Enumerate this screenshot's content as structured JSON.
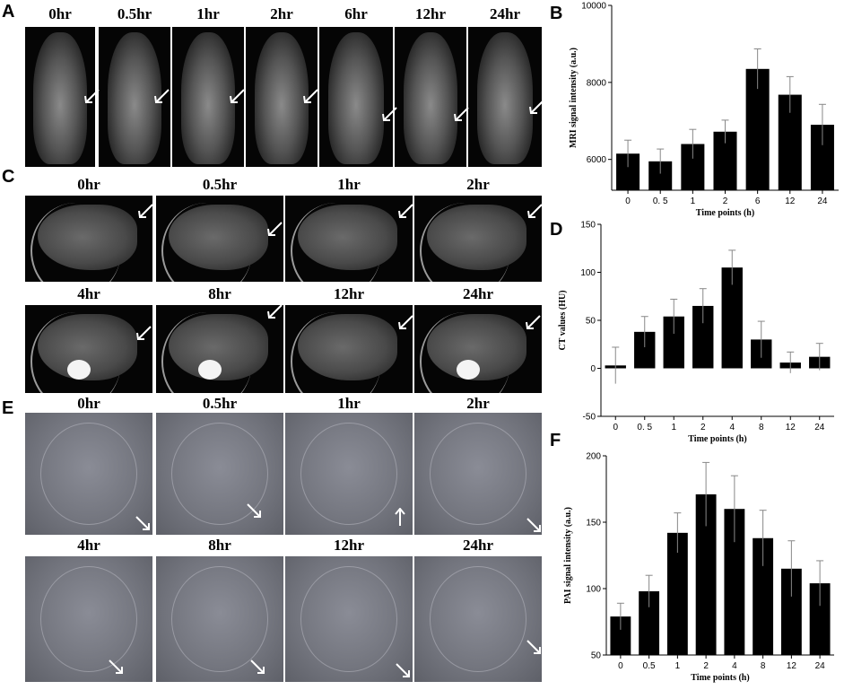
{
  "panels": {
    "A": {
      "letter": "A",
      "labels": [
        "0hr",
        "0.5hr",
        "1hr",
        "2hr",
        "6hr",
        "12hr",
        "24hr"
      ]
    },
    "B": {
      "letter": "B"
    },
    "C": {
      "letter": "C",
      "labels": [
        "0hr",
        "0.5hr",
        "1hr",
        "2hr",
        "4hr",
        "8hr",
        "12hr",
        "24hr"
      ]
    },
    "D": {
      "letter": "D"
    },
    "E": {
      "letter": "E",
      "labels": [
        "0hr",
        "0.5hr",
        "1hr",
        "2hr",
        "4hr",
        "8hr",
        "12hr",
        "24hr"
      ]
    },
    "F": {
      "letter": "F"
    }
  },
  "chart_data": [
    {
      "panel": "B",
      "type": "bar",
      "categories": [
        "0",
        "0. 5",
        "1",
        "2",
        "6",
        "12",
        "24"
      ],
      "values": [
        6150,
        5950,
        6400,
        6720,
        8350,
        7680,
        6900
      ],
      "errors": [
        350,
        320,
        380,
        300,
        520,
        470,
        530
      ],
      "xlabel": "Time points (h)",
      "ylabel": "MRI signal intensity (a.u.)",
      "ylim": [
        5200,
        10000
      ],
      "yticks": [
        6000,
        8000,
        10000
      ],
      "bar_color": "#000000"
    },
    {
      "panel": "D",
      "type": "bar",
      "categories": [
        "0",
        "0. 5",
        "1",
        "2",
        "4",
        "8",
        "12",
        "24"
      ],
      "values": [
        3,
        38,
        54,
        65,
        105,
        30,
        6,
        12
      ],
      "errors": [
        19,
        16,
        18,
        18,
        18,
        19,
        11,
        14
      ],
      "xlabel": "Time points (h)",
      "ylabel": "CT values (HU)",
      "ylim": [
        -50,
        150
      ],
      "yticks": [
        -50,
        0,
        50,
        100,
        150
      ],
      "bar_color": "#000000"
    },
    {
      "panel": "F",
      "type": "bar",
      "categories": [
        "0",
        "0.5",
        "1",
        "2",
        "4",
        "8",
        "12",
        "24"
      ],
      "values": [
        79,
        98,
        142,
        171,
        160,
        138,
        115,
        104
      ],
      "errors": [
        10,
        12,
        15,
        24,
        25,
        21,
        21,
        17
      ],
      "xlabel": "Time points (h)",
      "ylabel": "PAI signal intensity (a.u.)",
      "ylim": [
        50,
        200
      ],
      "yticks": [
        50,
        100,
        150,
        200
      ],
      "bar_color": "#000000"
    }
  ]
}
